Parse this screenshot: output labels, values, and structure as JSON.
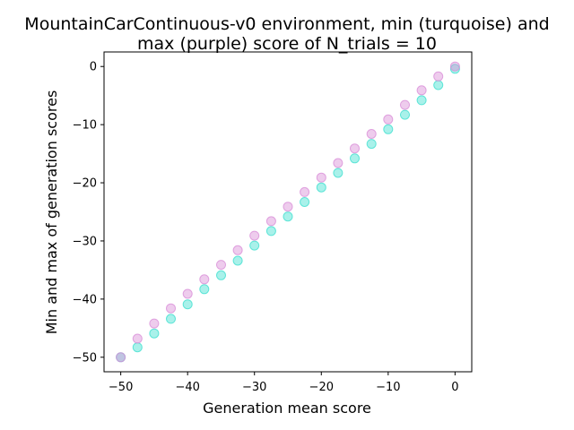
{
  "chart_data": {
    "type": "scatter",
    "title_line1": "MountainCarContinuous-v0 environment, min (turquoise) and",
    "title_line2": "max (purple) score of N_trials = 10",
    "xlabel": "Generation mean score",
    "ylabel": "Min and max of generation scores",
    "xlim": [
      -52.5,
      2.5
    ],
    "ylim": [
      -52.5,
      2.5
    ],
    "xticks": [
      -50,
      -40,
      -30,
      -20,
      -10,
      0
    ],
    "yticks": [
      -50,
      -40,
      -30,
      -20,
      -10,
      0
    ],
    "xtick_labels": [
      "−50",
      "−40",
      "−30",
      "−20",
      "−10",
      "0"
    ],
    "ytick_labels": [
      "−50",
      "−40",
      "−30",
      "−20",
      "−10",
      "0"
    ],
    "grid": false,
    "series": [
      {
        "color": "#40e0d0",
        "x": [
          -50,
          -47.5,
          -45,
          -42.5,
          -40,
          -37.5,
          -35,
          -32.5,
          -30,
          -27.5,
          -25,
          -22.5,
          -20,
          -17.5,
          -15,
          -12.5,
          -10,
          -7.5,
          -5,
          -2.5,
          0
        ],
        "y": [
          -50,
          -48.3,
          -45.9,
          -43.4,
          -40.9,
          -38.3,
          -35.9,
          -33.4,
          -30.8,
          -28.3,
          -25.8,
          -23.3,
          -20.8,
          -18.3,
          -15.8,
          -13.3,
          -10.8,
          -8.3,
          -5.8,
          -3.2,
          -0.4
        ]
      },
      {
        "color": "#da8fd8",
        "x": [
          -50,
          -47.5,
          -45,
          -42.5,
          -40,
          -37.5,
          -35,
          -32.5,
          -30,
          -27.5,
          -25,
          -22.5,
          -20,
          -17.5,
          -15,
          -12.5,
          -10,
          -7.5,
          -5,
          -2.5,
          0
        ],
        "y": [
          -50,
          -46.8,
          -44.2,
          -41.6,
          -39.1,
          -36.6,
          -34.1,
          -31.6,
          -29.1,
          -26.6,
          -24.1,
          -21.6,
          -19.1,
          -16.6,
          -14.1,
          -11.6,
          -9.1,
          -6.6,
          -4.1,
          -1.7,
          0
        ]
      }
    ]
  }
}
